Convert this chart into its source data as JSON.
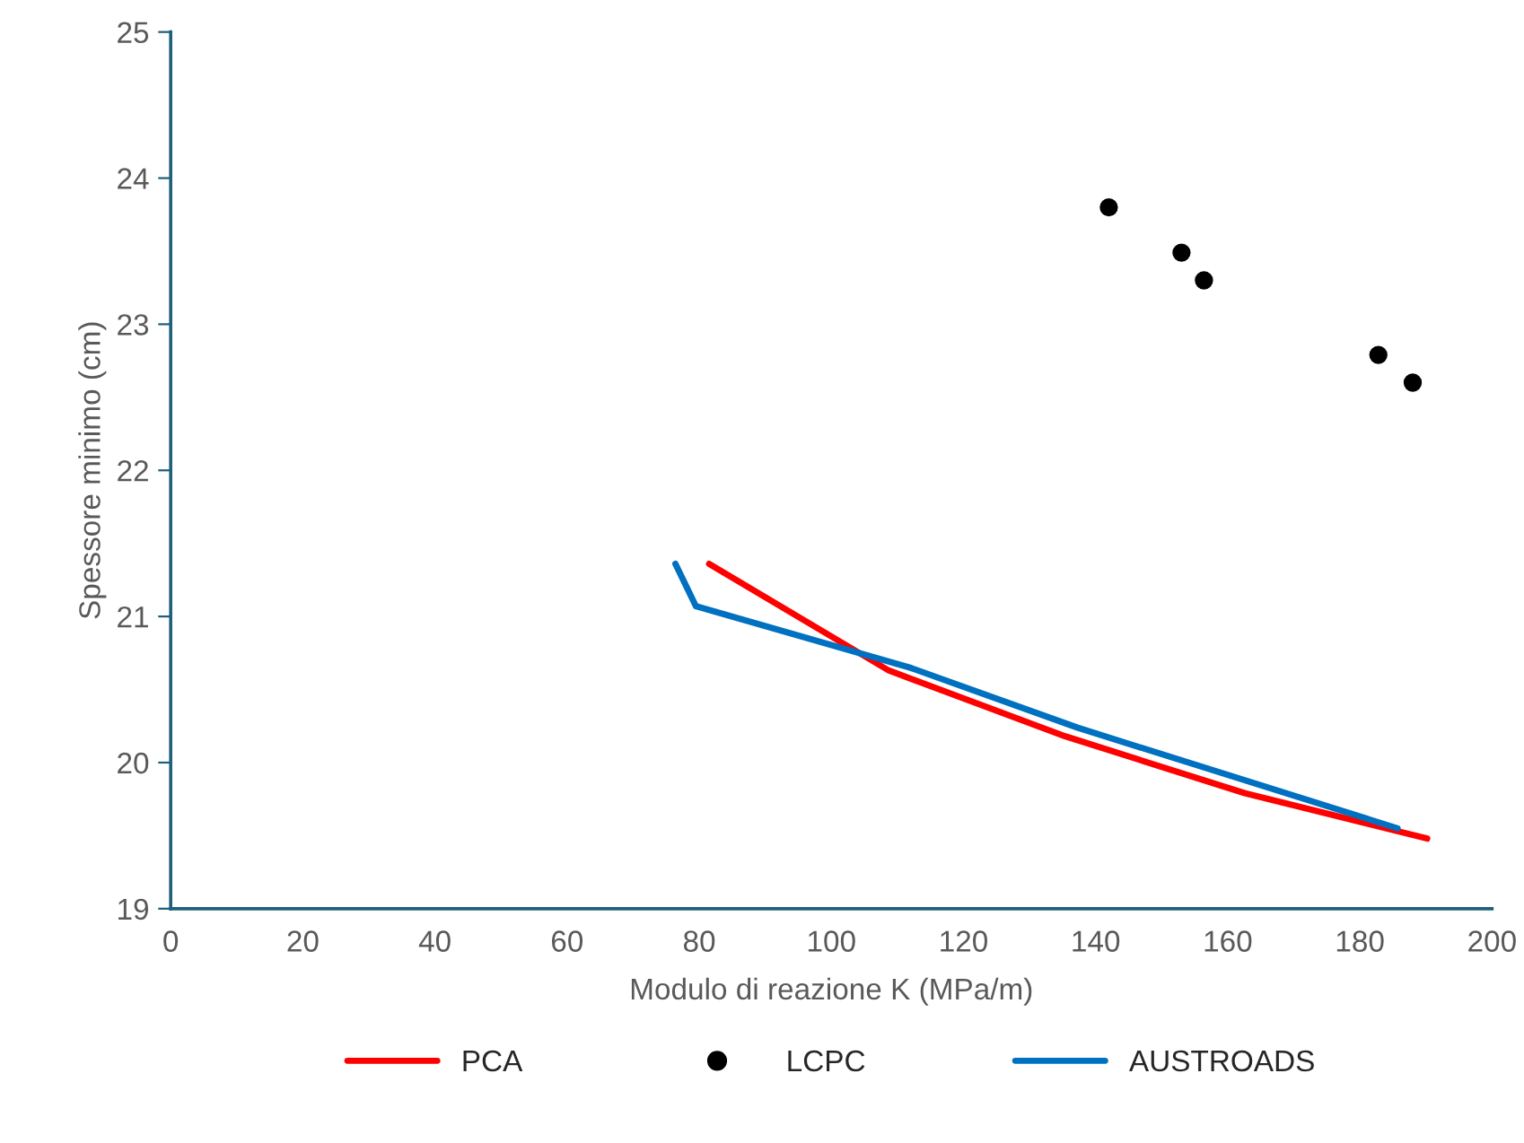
{
  "chart_data": {
    "type": "line",
    "xlabel": "Modulo di reazione K (MPa/m)",
    "ylabel": "Spessore minimo (cm)",
    "xlim": [
      0,
      200
    ],
    "xticks": [
      0,
      20,
      40,
      60,
      80,
      100,
      120,
      140,
      160,
      180,
      200
    ],
    "ylim": [
      19,
      25
    ],
    "yticks": [
      19,
      20,
      21,
      22,
      23,
      24,
      25
    ],
    "grid": false,
    "legend": "bottom",
    "series": [
      {
        "name": "PCA",
        "color": "#ff0000",
        "x": [
          81.5,
          108.7,
          135.4,
          162.6,
          190.2
        ],
        "values": [
          21.36,
          20.63,
          20.18,
          19.79,
          19.48
        ]
      },
      {
        "name": "LCPC",
        "type": "scatter",
        "color": "#000000",
        "marker": "circle",
        "x": [
          142,
          153,
          156.4,
          182.8,
          188
        ],
        "values": [
          23.8,
          23.49,
          23.3,
          22.79,
          22.6
        ]
      },
      {
        "name": "AUSTROADS",
        "color": "#0070c0",
        "x": [
          76.4,
          79.5,
          111.9,
          137.2,
          185.7
        ],
        "values": [
          21.36,
          21.07,
          20.65,
          20.24,
          19.55
        ]
      }
    ]
  }
}
